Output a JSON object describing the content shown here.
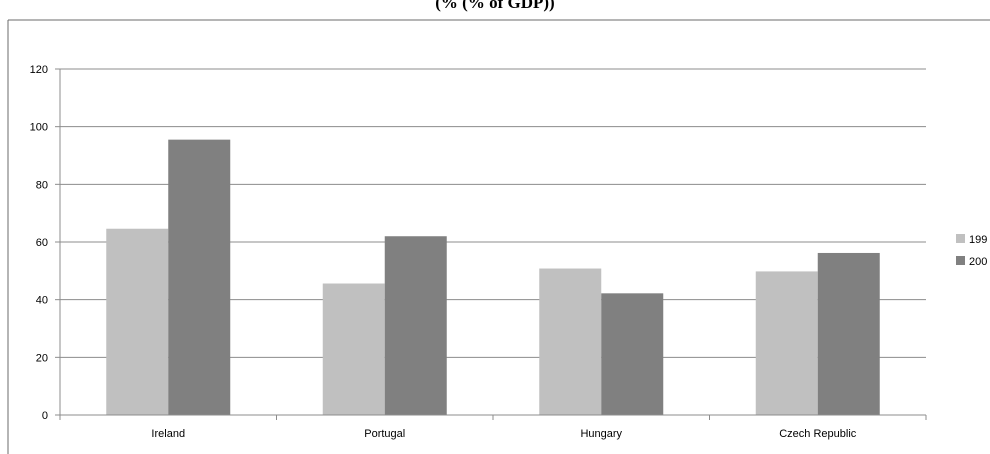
{
  "chart_data": {
    "type": "bar",
    "title": "(% (% of GDP))",
    "categories": [
      "Ireland",
      "Portugal",
      "Hungary",
      "Czech Republic"
    ],
    "series": [
      {
        "name": "199",
        "values": [
          64.6,
          45.6,
          50.8,
          49.8
        ],
        "color": "#c0c0c0"
      },
      {
        "name": "200",
        "values": [
          95.5,
          62.0,
          42.2,
          56.2
        ],
        "color": "#808080"
      }
    ],
    "y_ticks": [
      0,
      20,
      40,
      60,
      80,
      100,
      120
    ],
    "ylim": [
      0,
      120
    ],
    "grid": true,
    "legend_placement": "right",
    "xlabel": "",
    "ylabel": ""
  }
}
